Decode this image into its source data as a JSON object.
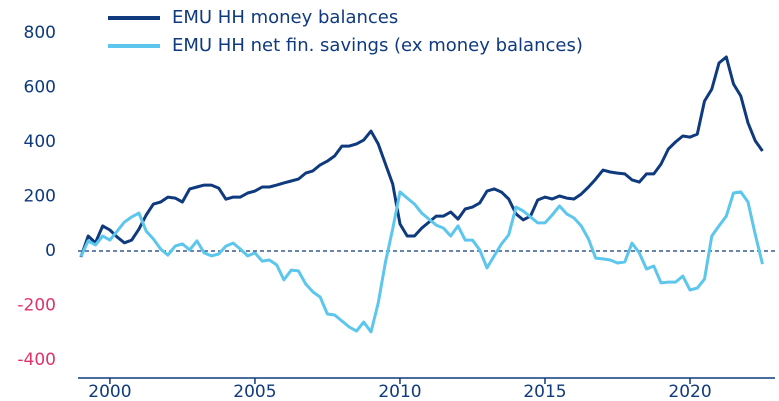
{
  "chart_data": {
    "type": "line",
    "x": [
      1999,
      1999.25,
      1999.5,
      1999.75,
      2000,
      2000.25,
      2000.5,
      2000.75,
      2001,
      2001.25,
      2001.5,
      2001.75,
      2002,
      2002.25,
      2002.5,
      2002.75,
      2003,
      2003.25,
      2003.5,
      2003.75,
      2004,
      2004.25,
      2004.5,
      2004.75,
      2005,
      2005.25,
      2005.5,
      2005.75,
      2006,
      2006.25,
      2006.5,
      2006.75,
      2007,
      2007.25,
      2007.5,
      2007.75,
      2008,
      2008.25,
      2008.5,
      2008.75,
      2009,
      2009.25,
      2009.5,
      2009.75,
      2010,
      2010.25,
      2010.5,
      2010.75,
      2011,
      2011.25,
      2011.5,
      2011.75,
      2012,
      2012.25,
      2012.5,
      2012.75,
      2013,
      2013.25,
      2013.5,
      2013.75,
      2014,
      2014.25,
      2014.5,
      2014.75,
      2015,
      2015.25,
      2015.5,
      2015.75,
      2016,
      2016.25,
      2016.5,
      2016.75,
      2017,
      2017.25,
      2017.5,
      2017.75,
      2018,
      2018.25,
      2018.5,
      2018.75,
      2019,
      2019.25,
      2019.5,
      2019.75,
      2020,
      2020.25,
      2020.5,
      2020.75,
      2021,
      2021.25,
      2021.5,
      2021.75,
      2022,
      2022.25,
      2022.5
    ],
    "series": [
      {
        "name": "EMU HH money balances",
        "color": "#0f3a7d",
        "values": [
          -22,
          55,
          30,
          92,
          77,
          51,
          30,
          40,
          80,
          132,
          172,
          180,
          198,
          194,
          180,
          228,
          235,
          242,
          242,
          231,
          190,
          198,
          198,
          213,
          220,
          235,
          235,
          242,
          250,
          257,
          264,
          286,
          294,
          316,
          330,
          349,
          385,
          385,
          393,
          407,
          440,
          393,
          319,
          246,
          99,
          55,
          55,
          84,
          106,
          128,
          128,
          143,
          117,
          154,
          161,
          176,
          220,
          228,
          216,
          191,
          136,
          114,
          128,
          187,
          198,
          191,
          202,
          194,
          191,
          209,
          235,
          264,
          297,
          290,
          286,
          283,
          261,
          253,
          283,
          283,
          319,
          374,
          400,
          422,
          418,
          429,
          550,
          594,
          690,
          712,
          613,
          569,
          470,
          404,
          367
        ]
      },
      {
        "name": "EMU HH net fin. savings (ex money balances)",
        "color": "#5cc6ec",
        "values": [
          -20,
          37,
          22,
          55,
          40,
          73,
          106,
          125,
          139,
          73,
          44,
          7,
          -15,
          18,
          26,
          4,
          37,
          -7,
          -18,
          -11,
          18,
          29,
          7,
          -18,
          -7,
          -37,
          -33,
          -51,
          -106,
          -70,
          -73,
          -121,
          -150,
          -169,
          -231,
          -235,
          -257,
          -279,
          -294,
          -261,
          -297,
          -191,
          -40,
          81,
          217,
          194,
          172,
          139,
          117,
          95,
          84,
          55,
          92,
          40,
          40,
          4,
          -62,
          -18,
          26,
          59,
          161,
          147,
          125,
          103,
          103,
          132,
          165,
          136,
          121,
          92,
          44,
          -26,
          -29,
          -33,
          -44,
          -40,
          29,
          -7,
          -66,
          -55,
          -117,
          -114,
          -114,
          -92,
          -143,
          -136,
          -103,
          55,
          92,
          128,
          213,
          217,
          180,
          60,
          -48
        ]
      }
    ],
    "xlim": [
      1998.9,
      2022.93
    ],
    "xticks": [
      2000,
      2005,
      2010,
      2015,
      2020
    ],
    "ylim": [
      -466,
      800
    ],
    "yticks": [
      -400,
      -200,
      0,
      200,
      400,
      600,
      800
    ],
    "axis_color": "#0f3a7d",
    "negative_tick_color": "#e0336b",
    "zero_line": "dashed"
  }
}
